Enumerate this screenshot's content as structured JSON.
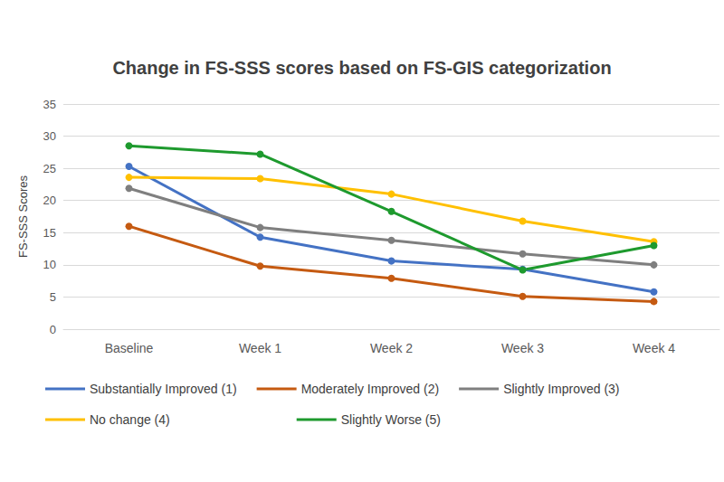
{
  "chart_data": {
    "type": "line",
    "title": "Change in FS-SSS scores based on FS-GIS categorization",
    "y_label": "FS-SSS Scores",
    "categories": [
      "Baseline",
      "Week 1",
      "Week 2",
      "Week 3",
      "Week 4"
    ],
    "series": [
      {
        "name": "Substantially Improved (1)",
        "color": "#4472c4",
        "values": [
          25.3,
          14.3,
          10.6,
          9.3,
          5.8
        ]
      },
      {
        "name": "Moderately Improved (2)",
        "color": "#c55a11",
        "values": [
          16.0,
          9.8,
          7.9,
          5.1,
          4.3
        ]
      },
      {
        "name": "Slightly Improved (3)",
        "color": "#7f7f7f",
        "values": [
          21.9,
          15.8,
          13.8,
          11.7,
          10.0
        ]
      },
      {
        "name": "No change (4)",
        "color": "#ffc000",
        "values": [
          23.6,
          23.4,
          21.0,
          16.8,
          13.6
        ]
      },
      {
        "name": "Slightly Worse (5)",
        "color": "#1e9a2e",
        "values": [
          28.5,
          27.2,
          18.3,
          9.2,
          13.0
        ]
      }
    ],
    "ylim": [
      0,
      35
    ],
    "yticks": [
      0,
      5,
      10,
      15,
      20,
      25,
      30,
      35
    ],
    "grid": true,
    "legend": "bottom",
    "marker": "circle"
  }
}
